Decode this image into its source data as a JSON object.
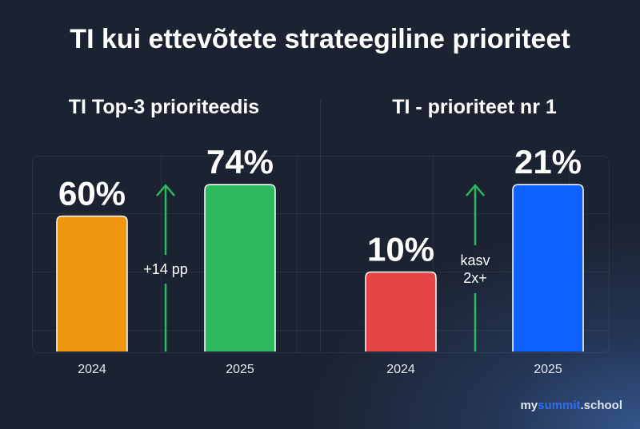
{
  "title": "TI kui ettevõtete strateegiline prioriteet",
  "chart_data": [
    {
      "type": "bar",
      "title": "TI Top-3 prioriteedis",
      "categories": [
        "2024",
        "2025"
      ],
      "values": [
        60,
        74
      ],
      "data_labels": [
        "60%",
        "74%"
      ],
      "colors": [
        "#f0960f",
        "#2dba5f"
      ],
      "annotation": [
        "+14 pp"
      ],
      "arrow_color": "#2dba5f"
    },
    {
      "type": "bar",
      "title": "TI - prioriteet nr 1",
      "categories": [
        "2024",
        "2025"
      ],
      "values": [
        10,
        21
      ],
      "data_labels": [
        "10%",
        "21%"
      ],
      "colors": [
        "#e64545",
        "#0f62fe"
      ],
      "annotation": [
        "kasv",
        "2x+"
      ],
      "arrow_color": "#2dba5f"
    }
  ],
  "logo": {
    "part1": "my",
    "part2": "summit",
    "part3": ".school"
  }
}
